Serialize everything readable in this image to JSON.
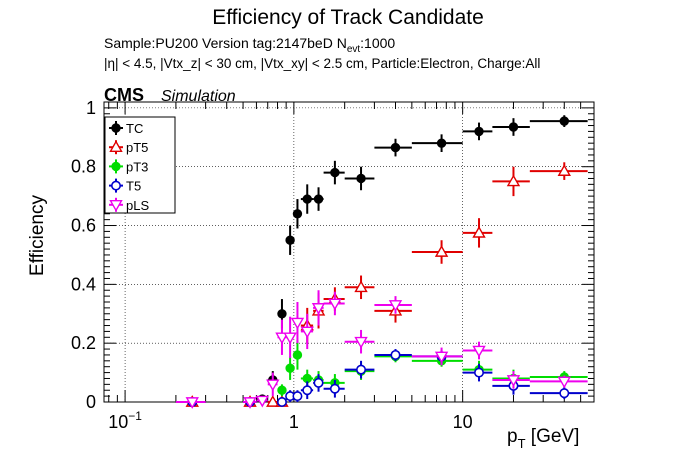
{
  "chart_data": {
    "type": "scatter",
    "title": "Efficiency of Track Candidate",
    "subtitle_line1": "Sample:PU200   Version tag:2147beD  N",
    "subtitle_line1_sub": "evt",
    "subtitle_line1_end": ":1000",
    "subtitle_line2": "|η| < 4.5, |Vtx_z| < 30 cm, |Vtx_xy| < 2.5 cm, Particle:Electron, Charge:All",
    "cms_label": "CMS",
    "simulation_label": "Simulation",
    "ylabel": "Efficiency",
    "xlabel_main": "p",
    "xlabel_sub": "T",
    "xlabel_unit": " [GeV]",
    "x_scale": "log",
    "xlim": [
      0.075,
      60
    ],
    "ylim": [
      0,
      1.02
    ],
    "grid": true,
    "legend_position": "top-left",
    "x_tick_labels": [
      {
        "x": 0.1,
        "base": "10",
        "exp": "−1"
      },
      {
        "x": 1,
        "base": "1",
        "exp": ""
      },
      {
        "x": 10,
        "base": "10",
        "exp": ""
      }
    ],
    "y_ticks": [
      {
        "y": 0,
        "label": "0"
      },
      {
        "y": 0.2,
        "label": "0.2"
      },
      {
        "y": 0.4,
        "label": "0.4"
      },
      {
        "y": 0.6,
        "label": "0.6"
      },
      {
        "y": 0.8,
        "label": "0.8"
      },
      {
        "y": 1,
        "label": "1"
      }
    ],
    "series": [
      {
        "name": "TC",
        "color": "#000000",
        "marker": "filled-circle",
        "points": [
          {
            "x": 0.25,
            "xlo": 0.2,
            "xhi": 0.3,
            "y": 0.0,
            "err": 0.005
          },
          {
            "x": 0.55,
            "xlo": 0.5,
            "xhi": 0.6,
            "y": 0.0,
            "err": 0.005
          },
          {
            "x": 0.65,
            "xlo": 0.6,
            "xhi": 0.7,
            "y": 0.01,
            "err": 0.01
          },
          {
            "x": 0.75,
            "xlo": 0.7,
            "xhi": 0.8,
            "y": 0.075,
            "err": 0.03
          },
          {
            "x": 0.85,
            "xlo": 0.8,
            "xhi": 0.9,
            "y": 0.3,
            "err": 0.05
          },
          {
            "x": 0.95,
            "xlo": 0.9,
            "xhi": 1.0,
            "y": 0.55,
            "err": 0.05
          },
          {
            "x": 1.05,
            "xlo": 1.0,
            "xhi": 1.1,
            "y": 0.64,
            "err": 0.05
          },
          {
            "x": 1.2,
            "xlo": 1.1,
            "xhi": 1.3,
            "y": 0.69,
            "err": 0.05
          },
          {
            "x": 1.4,
            "xlo": 1.3,
            "xhi": 1.5,
            "y": 0.69,
            "err": 0.04
          },
          {
            "x": 1.75,
            "xlo": 1.5,
            "xhi": 2.0,
            "y": 0.78,
            "err": 0.04
          },
          {
            "x": 2.5,
            "xlo": 2.0,
            "xhi": 3.0,
            "y": 0.76,
            "err": 0.04
          },
          {
            "x": 4,
            "xlo": 3,
            "xhi": 5,
            "y": 0.865,
            "err": 0.03
          },
          {
            "x": 7.5,
            "xlo": 5,
            "xhi": 10,
            "y": 0.88,
            "err": 0.03
          },
          {
            "x": 12.5,
            "xlo": 10,
            "xhi": 15,
            "y": 0.92,
            "err": 0.03
          },
          {
            "x": 20,
            "xlo": 15,
            "xhi": 25,
            "y": 0.935,
            "err": 0.03
          },
          {
            "x": 40,
            "xlo": 25,
            "xhi": 55,
            "y": 0.955,
            "err": 0.02
          }
        ]
      },
      {
        "name": "pT5",
        "color": "#e00000",
        "marker": "open-triangle",
        "points": [
          {
            "x": 0.25,
            "xlo": 0.2,
            "xhi": 0.3,
            "y": 0.0,
            "err": 0.005
          },
          {
            "x": 0.55,
            "xlo": 0.5,
            "xhi": 0.6,
            "y": 0.0,
            "err": 0.005
          },
          {
            "x": 0.75,
            "xlo": 0.7,
            "xhi": 0.8,
            "y": 0.0,
            "err": 0.005
          },
          {
            "x": 0.85,
            "xlo": 0.8,
            "xhi": 0.9,
            "y": 0.0,
            "err": 0.005
          },
          {
            "x": 1.2,
            "xlo": 1.1,
            "xhi": 1.3,
            "y": 0.26,
            "err": 0.06
          },
          {
            "x": 1.4,
            "xlo": 1.3,
            "xhi": 1.5,
            "y": 0.31,
            "err": 0.06
          },
          {
            "x": 1.75,
            "xlo": 1.5,
            "xhi": 2.0,
            "y": 0.35,
            "err": 0.04
          },
          {
            "x": 2.5,
            "xlo": 2.0,
            "xhi": 3.0,
            "y": 0.39,
            "err": 0.04
          },
          {
            "x": 4,
            "xlo": 3,
            "xhi": 5,
            "y": 0.31,
            "err": 0.04
          },
          {
            "x": 7.5,
            "xlo": 5,
            "xhi": 10,
            "y": 0.51,
            "err": 0.04
          },
          {
            "x": 12.5,
            "xlo": 10,
            "xhi": 15,
            "y": 0.575,
            "err": 0.05
          },
          {
            "x": 20,
            "xlo": 15,
            "xhi": 25,
            "y": 0.75,
            "err": 0.05
          },
          {
            "x": 40,
            "xlo": 25,
            "xhi": 55,
            "y": 0.785,
            "err": 0.03
          }
        ]
      },
      {
        "name": "pT3",
        "color": "#00dd00",
        "marker": "filled-circle",
        "points": [
          {
            "x": 0.25,
            "xlo": 0.2,
            "xhi": 0.3,
            "y": 0.0,
            "err": 0.005
          },
          {
            "x": 0.55,
            "xlo": 0.5,
            "xhi": 0.6,
            "y": 0.0,
            "err": 0.005
          },
          {
            "x": 0.85,
            "xlo": 0.8,
            "xhi": 0.9,
            "y": 0.04,
            "err": 0.02
          },
          {
            "x": 0.95,
            "xlo": 0.9,
            "xhi": 1.0,
            "y": 0.115,
            "err": 0.04
          },
          {
            "x": 1.05,
            "xlo": 1.0,
            "xhi": 1.1,
            "y": 0.16,
            "err": 0.05
          },
          {
            "x": 1.2,
            "xlo": 1.1,
            "xhi": 1.3,
            "y": 0.08,
            "err": 0.03
          },
          {
            "x": 1.4,
            "xlo": 1.3,
            "xhi": 1.5,
            "y": 0.075,
            "err": 0.03
          },
          {
            "x": 1.75,
            "xlo": 1.5,
            "xhi": 2.0,
            "y": 0.065,
            "err": 0.03
          },
          {
            "x": 2.5,
            "xlo": 2.0,
            "xhi": 3.0,
            "y": 0.105,
            "err": 0.03
          },
          {
            "x": 4,
            "xlo": 3,
            "xhi": 5,
            "y": 0.155,
            "err": 0.02
          },
          {
            "x": 7.5,
            "xlo": 5,
            "xhi": 10,
            "y": 0.14,
            "err": 0.02
          },
          {
            "x": 12.5,
            "xlo": 10,
            "xhi": 15,
            "y": 0.11,
            "err": 0.03
          },
          {
            "x": 20,
            "xlo": 15,
            "xhi": 25,
            "y": 0.08,
            "err": 0.03
          },
          {
            "x": 40,
            "xlo": 25,
            "xhi": 55,
            "y": 0.085,
            "err": 0.02
          }
        ]
      },
      {
        "name": "T5",
        "color": "#0000cc",
        "marker": "open-circle",
        "points": [
          {
            "x": 0.25,
            "xlo": 0.2,
            "xhi": 0.3,
            "y": 0.0,
            "err": 0.005
          },
          {
            "x": 0.55,
            "xlo": 0.5,
            "xhi": 0.6,
            "y": 0.0,
            "err": 0.005
          },
          {
            "x": 0.85,
            "xlo": 0.8,
            "xhi": 0.9,
            "y": 0.0,
            "err": 0.005
          },
          {
            "x": 0.95,
            "xlo": 0.9,
            "xhi": 1.0,
            "y": 0.02,
            "err": 0.02
          },
          {
            "x": 1.05,
            "xlo": 1.0,
            "xhi": 1.1,
            "y": 0.02,
            "err": 0.02
          },
          {
            "x": 1.2,
            "xlo": 1.1,
            "xhi": 1.3,
            "y": 0.04,
            "err": 0.03
          },
          {
            "x": 1.4,
            "xlo": 1.3,
            "xhi": 1.5,
            "y": 0.065,
            "err": 0.03
          },
          {
            "x": 1.75,
            "xlo": 1.5,
            "xhi": 2.0,
            "y": 0.045,
            "err": 0.03
          },
          {
            "x": 2.5,
            "xlo": 2.0,
            "xhi": 3.0,
            "y": 0.11,
            "err": 0.03
          },
          {
            "x": 4,
            "xlo": 3,
            "xhi": 5,
            "y": 0.16,
            "err": 0.02
          },
          {
            "x": 7.5,
            "xlo": 5,
            "xhi": 10,
            "y": 0.155,
            "err": 0.02
          },
          {
            "x": 12.5,
            "xlo": 10,
            "xhi": 15,
            "y": 0.1,
            "err": 0.03
          },
          {
            "x": 20,
            "xlo": 15,
            "xhi": 25,
            "y": 0.055,
            "err": 0.03
          },
          {
            "x": 40,
            "xlo": 25,
            "xhi": 55,
            "y": 0.03,
            "err": 0.02
          }
        ]
      },
      {
        "name": "pLS",
        "color": "#ee00ee",
        "marker": "open-triangle-down",
        "points": [
          {
            "x": 0.25,
            "xlo": 0.2,
            "xhi": 0.3,
            "y": 0.0,
            "err": 0.005
          },
          {
            "x": 0.55,
            "xlo": 0.5,
            "xhi": 0.6,
            "y": 0.0,
            "err": 0.005
          },
          {
            "x": 0.65,
            "xlo": 0.6,
            "xhi": 0.7,
            "y": 0.005,
            "err": 0.01
          },
          {
            "x": 0.75,
            "xlo": 0.7,
            "xhi": 0.8,
            "y": 0.06,
            "err": 0.04
          },
          {
            "x": 0.85,
            "xlo": 0.8,
            "xhi": 0.9,
            "y": 0.22,
            "err": 0.06
          },
          {
            "x": 0.95,
            "xlo": 0.9,
            "xhi": 1.0,
            "y": 0.22,
            "err": 0.07
          },
          {
            "x": 1.05,
            "xlo": 1.0,
            "xhi": 1.1,
            "y": 0.27,
            "err": 0.07
          },
          {
            "x": 1.2,
            "xlo": 1.1,
            "xhi": 1.3,
            "y": 0.24,
            "err": 0.06
          },
          {
            "x": 1.4,
            "xlo": 1.3,
            "xhi": 1.5,
            "y": 0.32,
            "err": 0.06
          },
          {
            "x": 1.75,
            "xlo": 1.5,
            "xhi": 2.0,
            "y": 0.335,
            "err": 0.04
          },
          {
            "x": 2.5,
            "xlo": 2.0,
            "xhi": 3.0,
            "y": 0.205,
            "err": 0.04
          },
          {
            "x": 4,
            "xlo": 3,
            "xhi": 5,
            "y": 0.33,
            "err": 0.03
          },
          {
            "x": 7.5,
            "xlo": 5,
            "xhi": 10,
            "y": 0.155,
            "err": 0.03
          },
          {
            "x": 12.5,
            "xlo": 10,
            "xhi": 15,
            "y": 0.175,
            "err": 0.03
          },
          {
            "x": 20,
            "xlo": 15,
            "xhi": 25,
            "y": 0.075,
            "err": 0.03
          },
          {
            "x": 40,
            "xlo": 25,
            "xhi": 55,
            "y": 0.07,
            "err": 0.02
          }
        ]
      }
    ]
  }
}
